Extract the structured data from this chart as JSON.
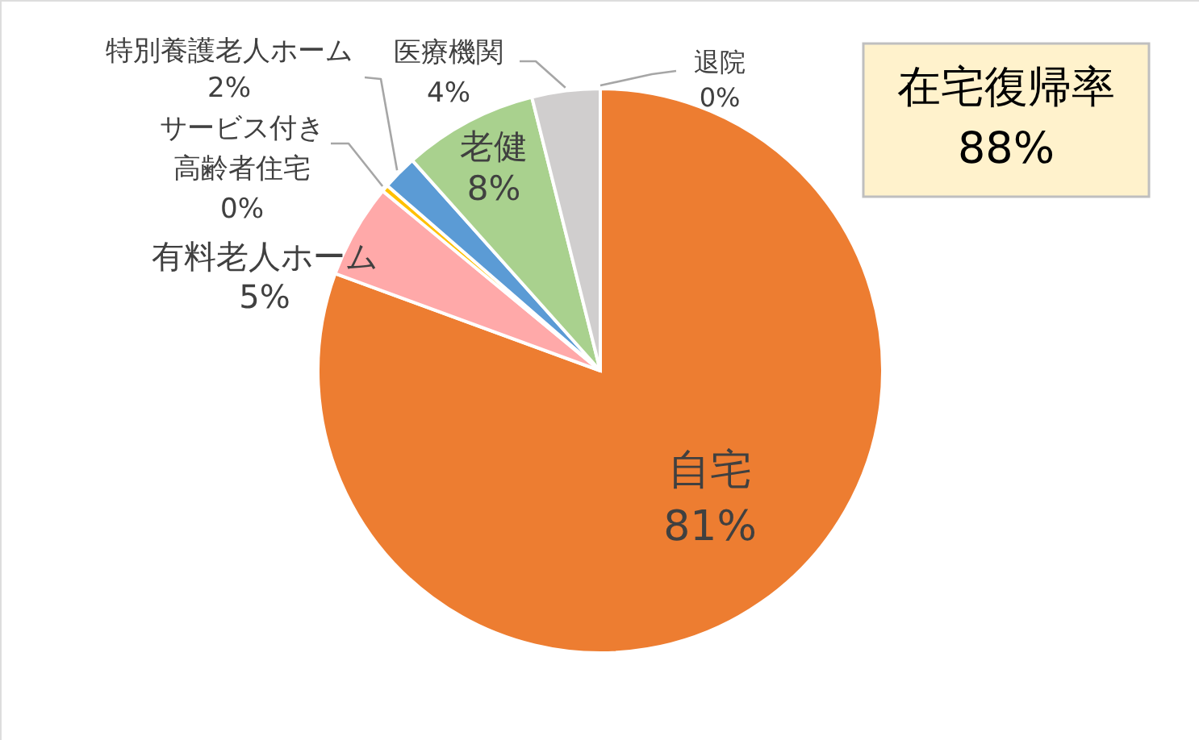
{
  "chart_data": {
    "type": "pie",
    "categories": [
      "自宅",
      "有料老人ホーム",
      "サービス付き高齢者住宅",
      "特別養護老人ホーム",
      "老健",
      "医療機関",
      "退院"
    ],
    "values": [
      80.6,
      5.4,
      0.4,
      2.0,
      7.7,
      3.9,
      0
    ],
    "value_labels": [
      "81%",
      "5%",
      "0%",
      "2%",
      "8%",
      "4%",
      "0%"
    ],
    "colors": [
      "#ed7d31",
      "#ffa9a9",
      "#ffc000",
      "#5b9bd5",
      "#a9d18e",
      "#d0cece",
      "#a5a5a5"
    ],
    "annotations": [
      "在宅復帰率\n88%"
    ]
  }
}
